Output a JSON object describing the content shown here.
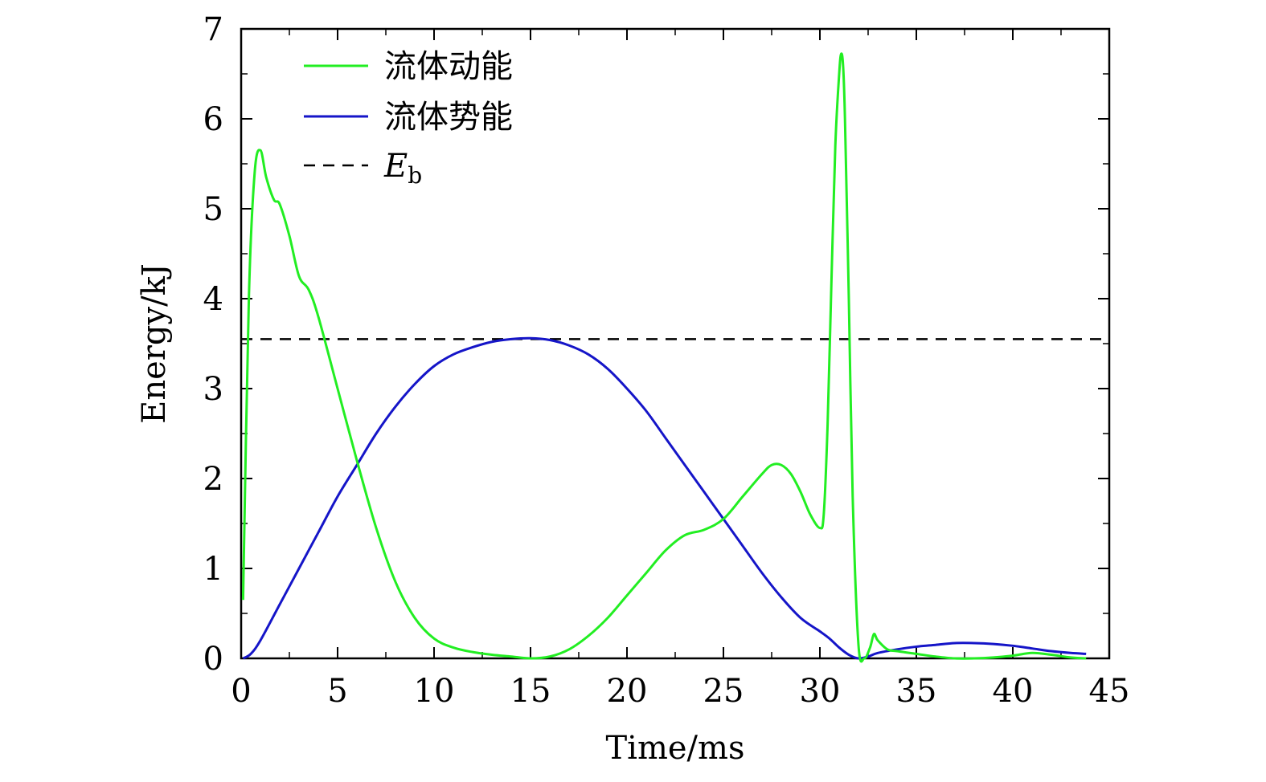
{
  "chart_data": {
    "type": "line",
    "xlabel": "Time/ms",
    "ylabel": "Energy/kJ",
    "xlim": [
      0,
      45
    ],
    "ylim": [
      0,
      7
    ],
    "xticks": [
      0,
      5,
      10,
      15,
      20,
      25,
      30,
      35,
      40,
      45
    ],
    "yticks": [
      0,
      1,
      2,
      3,
      4,
      5,
      6,
      7
    ],
    "grid": false,
    "legend_position": "top-left",
    "series": [
      {
        "name": "流体动能",
        "color": "#22ee22",
        "style": "solid",
        "x": [
          0.1,
          0.4,
          0.7,
          1.0,
          1.3,
          1.7,
          2.0,
          2.5,
          3.0,
          3.5,
          4.0,
          5.0,
          6.0,
          7.0,
          8.0,
          9.0,
          10.0,
          11.0,
          12.0,
          13.0,
          14.0,
          15.0,
          16.0,
          17.0,
          18.0,
          19.0,
          20.0,
          21.0,
          22.0,
          23.0,
          24.0,
          25.0,
          26.0,
          27.0,
          27.5,
          28.0,
          28.5,
          29.0,
          29.5,
          30.0,
          30.2,
          30.4,
          30.6,
          30.8,
          31.0,
          31.1,
          31.2,
          31.3,
          31.5,
          31.7,
          32.0,
          32.3,
          32.6,
          32.8,
          33.0,
          33.5,
          34.0,
          35.0,
          36.0,
          37.0,
          38.0,
          39.0,
          40.0,
          41.0,
          42.0,
          43.0,
          43.8
        ],
        "y": [
          0.65,
          4.0,
          5.4,
          5.65,
          5.35,
          5.1,
          5.05,
          4.7,
          4.25,
          4.1,
          3.8,
          3.0,
          2.2,
          1.45,
          0.85,
          0.45,
          0.22,
          0.12,
          0.07,
          0.04,
          0.02,
          0.0,
          0.02,
          0.1,
          0.25,
          0.45,
          0.7,
          0.95,
          1.2,
          1.37,
          1.43,
          1.55,
          1.8,
          2.05,
          2.15,
          2.15,
          2.05,
          1.85,
          1.6,
          1.45,
          1.6,
          2.6,
          4.2,
          5.7,
          6.5,
          6.72,
          6.6,
          6.0,
          4.0,
          1.8,
          0.15,
          0.0,
          0.12,
          0.27,
          0.2,
          0.1,
          0.08,
          0.05,
          0.02,
          0.0,
          0.0,
          0.01,
          0.03,
          0.06,
          0.04,
          0.01,
          0.0
        ]
      },
      {
        "name": "流体势能",
        "color": "#1515c8",
        "style": "solid",
        "x": [
          0.1,
          0.5,
          1.0,
          2.0,
          3.0,
          4.0,
          5.0,
          6.0,
          7.0,
          8.0,
          9.0,
          10.0,
          11.0,
          12.0,
          13.0,
          14.0,
          15.0,
          16.0,
          17.0,
          18.0,
          19.0,
          20.0,
          21.0,
          22.0,
          23.0,
          24.0,
          25.0,
          26.0,
          27.0,
          28.0,
          29.0,
          30.0,
          30.5,
          31.0,
          31.5,
          32.0,
          32.5,
          33.0,
          34.0,
          35.0,
          36.0,
          37.0,
          38.0,
          39.0,
          40.0,
          41.0,
          42.0,
          43.0,
          43.8
        ],
        "y": [
          0.0,
          0.05,
          0.2,
          0.6,
          1.0,
          1.4,
          1.8,
          2.15,
          2.5,
          2.8,
          3.05,
          3.25,
          3.38,
          3.46,
          3.52,
          3.55,
          3.56,
          3.54,
          3.48,
          3.38,
          3.22,
          3.0,
          2.75,
          2.45,
          2.15,
          1.85,
          1.55,
          1.25,
          0.95,
          0.68,
          0.45,
          0.3,
          0.22,
          0.12,
          0.04,
          0.0,
          0.02,
          0.06,
          0.1,
          0.13,
          0.15,
          0.17,
          0.17,
          0.16,
          0.14,
          0.11,
          0.08,
          0.06,
          0.05
        ]
      },
      {
        "name": "E",
        "name_sub": "b",
        "color": "#000000",
        "style": "dashed",
        "x": [
          0,
          45
        ],
        "y": [
          3.55,
          3.55
        ]
      }
    ]
  }
}
